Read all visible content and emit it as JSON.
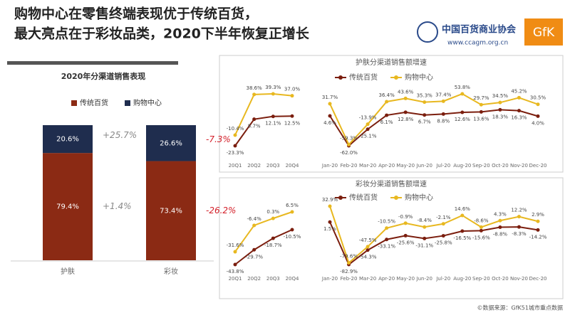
{
  "header": {
    "title_lines": [
      "购物中心在零售终端表现优于传统百货，",
      "最大亮点在于彩妆品类，2020下半年恢复正增长"
    ],
    "logo_text": "中国百货商业协会",
    "logo_url": "www.ccagm.org.cn",
    "logo_brand": "GfK"
  },
  "chart_data": [
    {
      "type": "bar",
      "stacked": true,
      "title": "2020年分渠道销售表现",
      "categories": [
        "护肤",
        "彩妆"
      ],
      "series": [
        {
          "name": "传统百货",
          "color": "#8b2a14",
          "values": [
            79.4,
            73.4
          ],
          "value_labels": [
            "79.4%",
            "73.4%"
          ],
          "annotations": [
            "+1.4%",
            "-26.2%"
          ]
        },
        {
          "name": "购物中心",
          "color": "#1f2d4e",
          "values": [
            20.6,
            26.6
          ],
          "value_labels": [
            "20.6%",
            "26.6%"
          ],
          "annotations": [
            "+25.7%",
            "-7.3%"
          ]
        }
      ]
    },
    {
      "type": "line",
      "categories": [
        "20Q1",
        "20Q2",
        "20Q3",
        "20Q4"
      ],
      "series": [
        {
          "color": "#7b1e0e",
          "values": [
            -23.3,
            8.7,
            12.1,
            12.5
          ],
          "value_labels": [
            "-23.3%",
            "8.7%",
            "12.1%",
            "12.5%"
          ]
        },
        {
          "color": "#e8b820",
          "values": [
            -10.4,
            38.6,
            39.3,
            37.0
          ],
          "value_labels": [
            "-10.4%",
            "38.6%",
            "39.3%",
            "37.0%"
          ]
        }
      ]
    },
    {
      "type": "line",
      "title": "护肤分渠道销售额增速",
      "categories": [
        "Jan-20",
        "Feb-20",
        "Mar-20",
        "Apr-20",
        "May-20",
        "Jun-20",
        "Jul-20",
        "Aug-20",
        "Sep-20",
        "Oct-20",
        "Nov-20",
        "Dec-20"
      ],
      "series": [
        {
          "name": "传统百货",
          "color": "#7b1e0e",
          "values": [
            4.6,
            -62.0,
            -25.1,
            6.1,
            12.8,
            6.7,
            8.8,
            12.6,
            13.6,
            18.3,
            16.3,
            4.0
          ],
          "value_labels": [
            "4.6%",
            "-62.0%",
            "-25.1%",
            "6.1%",
            "12.8%",
            "6.7%",
            "8.8%",
            "12.6%",
            "13.6%",
            "18.3%",
            "16.3%",
            "4.0%"
          ]
        },
        {
          "name": "购物中心",
          "color": "#e8b820",
          "values": [
            31.7,
            -59.3,
            -13.9,
            36.4,
            43.6,
            35.3,
            37.4,
            53.8,
            29.7,
            34.5,
            45.2,
            30.5
          ],
          "value_labels": [
            "31.7%",
            "-59.3%",
            "-13.9%",
            "36.4%",
            "43.6%",
            "35.3%",
            "37.4%",
            "53.8%",
            "29.7%",
            "34.5%",
            "45.2%",
            "30.5%"
          ]
        }
      ]
    },
    {
      "type": "line",
      "categories": [
        "20Q1",
        "20Q2",
        "20Q3",
        "20Q4"
      ],
      "series": [
        {
          "color": "#7b1e0e",
          "values": [
            -43.8,
            -29.7,
            -18.7,
            -10.5
          ],
          "value_labels": [
            "-43.8%",
            "-29.7%",
            "-18.7%",
            "-10.5%"
          ]
        },
        {
          "color": "#e8b820",
          "values": [
            -31.6,
            -6.4,
            0.3,
            6.5
          ],
          "value_labels": [
            "-31.6%",
            "-6.4%",
            "0.3%",
            "6.5%"
          ]
        }
      ]
    },
    {
      "type": "line",
      "title": "彩妆分渠道销售额增速",
      "categories": [
        "Jan-20",
        "Feb-20",
        "Mar-20",
        "Apr-20",
        "May-20",
        "Jun-20",
        "Jul-20",
        "Aug-20",
        "Sep-20",
        "Oct-20",
        "Nov-20",
        "Dec-20"
      ],
      "series": [
        {
          "name": "传统百货",
          "color": "#7b1e0e",
          "values": [
            1.5,
            -82.9,
            -54.3,
            -33.1,
            -25.6,
            -31.1,
            -25.8,
            -16.5,
            -15.6,
            -8.8,
            -8.3,
            -14.2
          ],
          "value_labels": [
            "1.5%",
            "-82.9%",
            "-54.3%",
            "-33.1%",
            "-25.6%",
            "-31.1%",
            "-25.8%",
            "-16.5%",
            "-15.6%",
            "-8.8%",
            "-8.3%",
            "-14.2%"
          ]
        },
        {
          "name": "购物中心",
          "color": "#e8b820",
          "values": [
            32.9,
            -79.6,
            -47.5,
            -10.5,
            -0.9,
            -8.4,
            -2.1,
            14.6,
            -8.6,
            4.3,
            12.2,
            2.9
          ],
          "value_labels": [
            "32.9%",
            "-79.6%",
            "-47.5%",
            "-10.5%",
            "-0.9%",
            "-8.4%",
            "-2.1%",
            "14.6%",
            "-8.6%",
            "4.3%",
            "12.2%",
            "2.9%"
          ]
        }
      ]
    }
  ],
  "source": "©数据来源：GfK51城市重点数据"
}
